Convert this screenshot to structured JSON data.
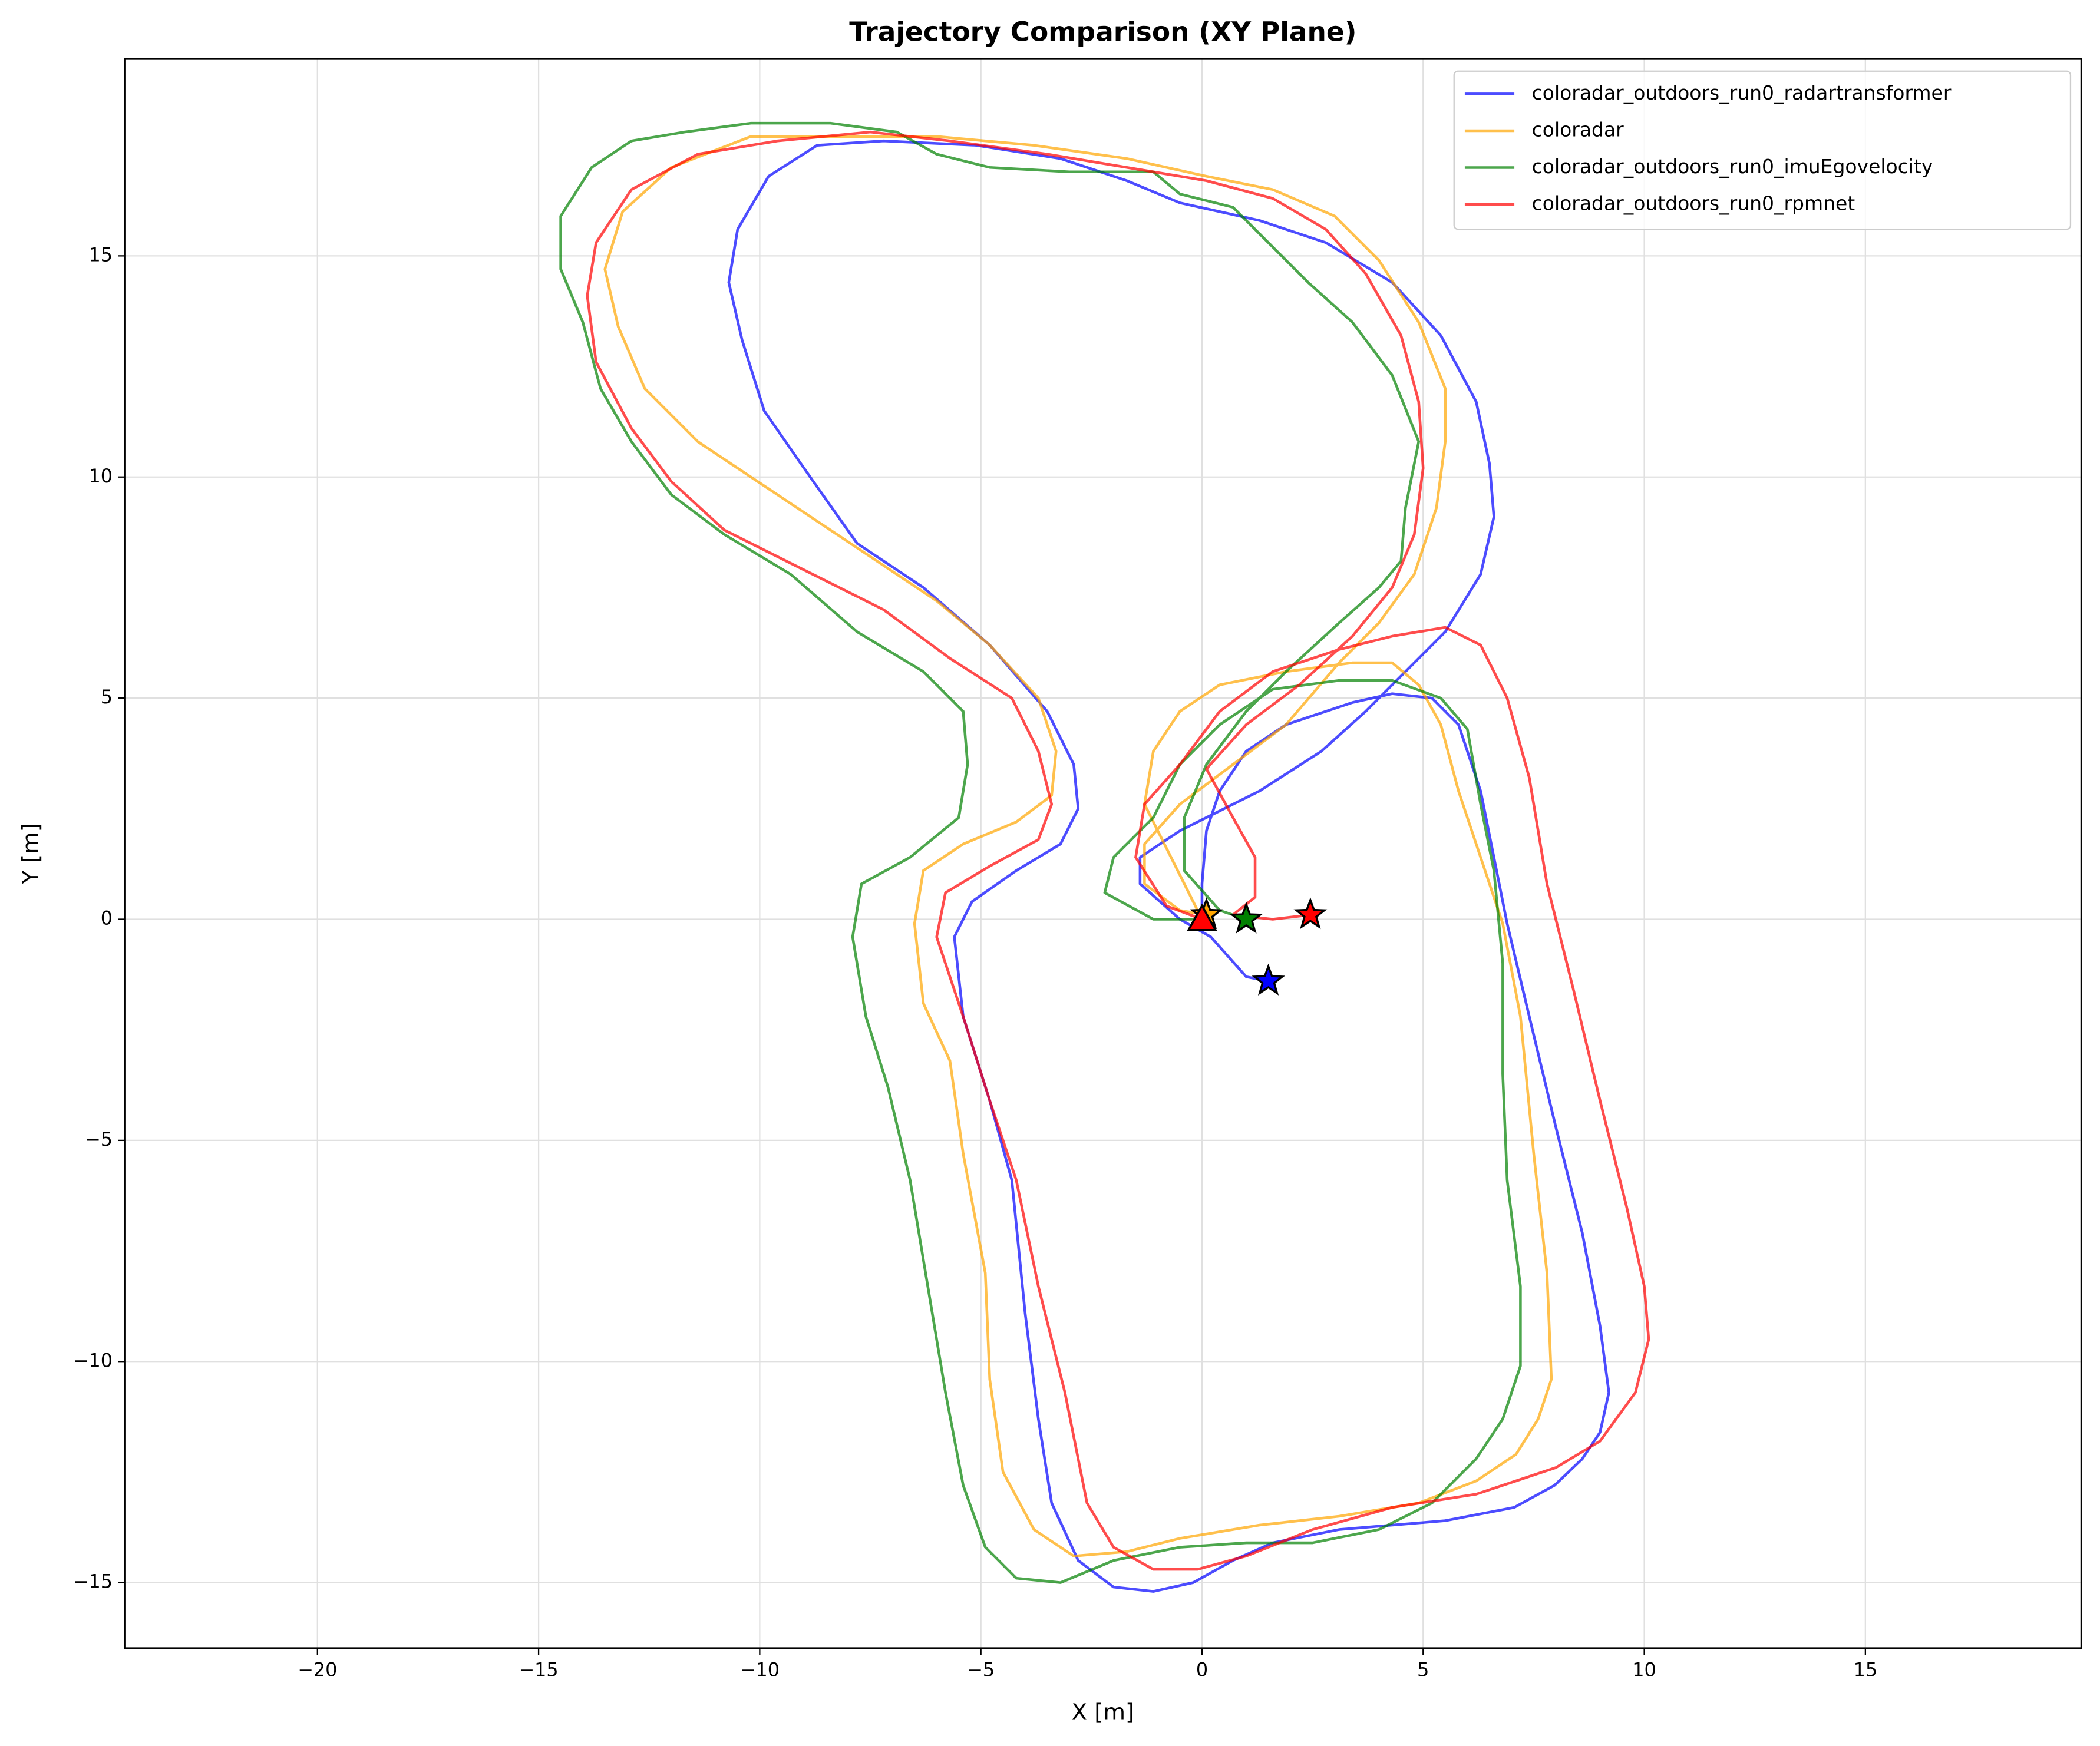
{
  "chart_data": {
    "type": "line",
    "title": "Trajectory Comparison (XY Plane)",
    "x_label": "X [m]",
    "y_label": "Y [m]",
    "xlim": [
      -24.36,
      19.88
    ],
    "ylim": [
      -16.48,
      19.45
    ],
    "xticks": [
      {
        "value": -20,
        "label": "−20"
      },
      {
        "value": -15,
        "label": "−15"
      },
      {
        "value": -10,
        "label": "−10"
      },
      {
        "value": -5,
        "label": "−5"
      },
      0,
      5,
      10,
      15
    ],
    "yticks": [
      {
        "value": -15,
        "label": "−15"
      },
      {
        "value": -10,
        "label": "−10"
      },
      {
        "value": -5,
        "label": "−5"
      },
      0,
      5,
      10,
      15
    ],
    "grid": true,
    "legend": "upper right",
    "series": [
      {
        "name": "coloradar_outdoors_run0_radartransformer",
        "color": "#0000ff",
        "x": [
          0,
          0,
          0.1,
          0.4,
          1.0,
          1.9,
          3.4,
          4.3,
          5.2,
          5.8,
          6.3,
          6.6,
          6.9,
          7.4,
          8.0,
          8.6,
          9.0,
          9.2,
          9.0,
          8.6,
          7.97,
          7.06,
          5.5,
          3.1,
          1.6,
          0.7,
          -0.2,
          -1.1,
          -2.0,
          -2.8,
          -3.4,
          -3.7,
          -4.0,
          -4.3,
          -4.8,
          -5.4,
          -5.6,
          -5.2,
          -4.2,
          -3.2,
          -2.8,
          -2.9,
          -3.5,
          -4.8,
          -6.3,
          -7.8,
          -9.0,
          -9.9,
          -10.4,
          -10.7,
          -10.5,
          -9.8,
          -8.7,
          -7.2,
          -5.1,
          -3.2,
          -1.7,
          -0.5,
          1.3,
          2.8,
          4.3,
          5.4,
          6.2,
          6.5,
          6.6,
          6.3,
          5.5,
          4.6,
          3.7,
          2.7,
          1.3,
          -0.5,
          -1.4,
          -1.4,
          -0.5,
          0.2,
          1.0,
          1.5
        ],
        "y": [
          0,
          0.8,
          2.0,
          2.9,
          3.8,
          4.4,
          4.9,
          5.1,
          5.0,
          4.4,
          2.9,
          1.4,
          -0.1,
          -2.2,
          -4.7,
          -7.1,
          -9.2,
          -10.7,
          -11.6,
          -12.2,
          -12.8,
          -13.3,
          -13.6,
          -13.8,
          -14.1,
          -14.5,
          -15.0,
          -15.2,
          -15.1,
          -14.5,
          -13.2,
          -11.3,
          -8.9,
          -5.9,
          -4.1,
          -2.2,
          -0.4,
          0.4,
          1.1,
          1.7,
          2.5,
          3.5,
          4.7,
          6.2,
          7.5,
          8.5,
          10.2,
          11.5,
          13.1,
          14.4,
          15.6,
          16.8,
          17.5,
          17.6,
          17.5,
          17.2,
          16.7,
          16.2,
          15.8,
          15.3,
          14.4,
          13.2,
          11.7,
          10.3,
          9.1,
          7.8,
          6.5,
          5.6,
          4.7,
          3.8,
          2.9,
          2.0,
          1.4,
          0.8,
          0.0,
          -0.4,
          -1.3,
          -1.4
        ]
      },
      {
        "name": "coloradar",
        "color": "#ffa500",
        "x": [
          0,
          -1.3,
          -1.1,
          -0.5,
          0.4,
          1.9,
          3.4,
          4.3,
          4.9,
          5.4,
          5.8,
          6.3,
          6.8,
          7.2,
          7.5,
          7.8,
          7.9,
          7.6,
          7.1,
          6.2,
          4.9,
          3.1,
          1.3,
          -0.5,
          -1.7,
          -2.9,
          -3.8,
          -4.5,
          -4.8,
          -4.9,
          -5.4,
          -5.7,
          -6.3,
          -6.5,
          -6.3,
          -5.4,
          -4.2,
          -3.4,
          -3.3,
          -3.7,
          -4.8,
          -6.0,
          -7.8,
          -9.6,
          -11.4,
          -12.6,
          -13.2,
          -13.5,
          -13.1,
          -12.0,
          -10.2,
          -8.4,
          -6.0,
          -3.8,
          -1.7,
          0.1,
          1.6,
          3.0,
          4.0,
          4.9,
          5.5,
          5.5,
          5.3,
          4.8,
          4.0,
          3.1,
          1.9,
          0.7,
          -0.5,
          -1.3,
          -1.3,
          -0.5,
          0.1
        ],
        "y": [
          0,
          2.6,
          3.8,
          4.7,
          5.3,
          5.6,
          5.8,
          5.8,
          5.3,
          4.4,
          2.9,
          1.4,
          -0.1,
          -2.2,
          -5.3,
          -8.0,
          -10.4,
          -11.3,
          -12.1,
          -12.7,
          -13.2,
          -13.5,
          -13.7,
          -14.0,
          -14.3,
          -14.4,
          -13.8,
          -12.5,
          -10.4,
          -8.0,
          -5.3,
          -3.2,
          -1.9,
          -0.1,
          1.1,
          1.7,
          2.2,
          2.8,
          3.8,
          5.0,
          6.2,
          7.2,
          8.4,
          9.6,
          10.8,
          12.0,
          13.4,
          14.7,
          16.0,
          17.0,
          17.7,
          17.7,
          17.7,
          17.5,
          17.2,
          16.8,
          16.5,
          15.9,
          14.9,
          13.5,
          12.0,
          10.8,
          9.3,
          7.8,
          6.7,
          5.8,
          4.4,
          3.5,
          2.6,
          1.7,
          0.8,
          0.2,
          0.1
        ]
      },
      {
        "name": "coloradar_outdoors_run0_imuEgovelocity",
        "color": "#008000",
        "x": [
          0,
          -1.1,
          -2.2,
          -2.0,
          -1.1,
          -0.5,
          0.4,
          1.6,
          3.1,
          4.3,
          5.4,
          6.0,
          6.3,
          6.6,
          6.8,
          6.8,
          6.9,
          7.2,
          7.2,
          6.8,
          6.2,
          5.2,
          4.0,
          2.5,
          1.0,
          -0.5,
          -2.0,
          -3.2,
          -4.2,
          -4.9,
          -5.4,
          -5.8,
          -6.2,
          -6.6,
          -7.1,
          -7.6,
          -7.9,
          -7.7,
          -6.6,
          -5.5,
          -5.3,
          -5.4,
          -6.3,
          -7.8,
          -9.3,
          -10.8,
          -12.0,
          -12.9,
          -13.6,
          -14.0,
          -14.5,
          -14.5,
          -13.8,
          -12.9,
          -11.7,
          -10.2,
          -8.4,
          -6.9,
          -6.0,
          -4.8,
          -3.0,
          -1.1,
          -0.5,
          0.7,
          1.5,
          2.4,
          3.4,
          4.3,
          4.9,
          4.6,
          4.5,
          4.0,
          3.1,
          1.9,
          1.0,
          0.1,
          -0.4,
          -0.4,
          0.4,
          1.0
        ],
        "y": [
          0,
          0.0,
          0.6,
          1.4,
          2.3,
          3.5,
          4.4,
          5.2,
          5.4,
          5.4,
          5.0,
          4.3,
          2.6,
          1.1,
          -1.0,
          -3.5,
          -5.9,
          -8.3,
          -10.1,
          -11.3,
          -12.2,
          -13.2,
          -13.8,
          -14.1,
          -14.1,
          -14.2,
          -14.5,
          -15.0,
          -14.9,
          -14.2,
          -12.8,
          -10.7,
          -8.3,
          -5.9,
          -3.8,
          -2.2,
          -0.4,
          0.8,
          1.4,
          2.3,
          3.5,
          4.7,
          5.6,
          6.5,
          7.8,
          8.7,
          9.6,
          10.8,
          12.0,
          13.5,
          14.7,
          15.9,
          17.0,
          17.6,
          17.8,
          18.0,
          18.0,
          17.8,
          17.3,
          17.0,
          16.9,
          16.9,
          16.4,
          16.1,
          15.3,
          14.4,
          13.5,
          12.3,
          10.8,
          9.3,
          8.1,
          7.5,
          6.7,
          5.6,
          4.7,
          3.5,
          2.3,
          1.1,
          0.2,
          0.0
        ]
      },
      {
        "name": "coloradar_outdoors_run0_rpmnet",
        "color": "#ff0000",
        "x": [
          0,
          -0.8,
          -1.5,
          -1.3,
          -0.5,
          0.4,
          1.6,
          3.1,
          4.3,
          5.5,
          6.3,
          6.9,
          7.4,
          7.8,
          8.4,
          9.0,
          9.6,
          10.0,
          10.1,
          9.8,
          9.0,
          8.0,
          6.2,
          4.3,
          2.5,
          1.0,
          -0.1,
          -1.1,
          -2.0,
          -2.6,
          -3.1,
          -3.7,
          -4.2,
          -4.8,
          -5.4,
          -6.0,
          -5.8,
          -4.8,
          -3.7,
          -3.4,
          -3.7,
          -4.3,
          -5.7,
          -7.2,
          -9.0,
          -10.8,
          -12.0,
          -12.9,
          -13.7,
          -13.9,
          -13.7,
          -12.9,
          -11.4,
          -9.6,
          -7.5,
          -5.7,
          -3.5,
          -1.7,
          0.1,
          1.6,
          2.8,
          3.7,
          4.5,
          4.9,
          5.0,
          4.8,
          4.3,
          3.4,
          2.2,
          1.0,
          0.1,
          0.7,
          1.2,
          1.2,
          0.7,
          1.6,
          2.45
        ],
        "y": [
          0,
          0.3,
          1.4,
          2.6,
          3.5,
          4.7,
          5.6,
          6.1,
          6.4,
          6.6,
          6.2,
          5.0,
          3.2,
          0.8,
          -1.6,
          -4.1,
          -6.5,
          -8.3,
          -9.5,
          -10.7,
          -11.8,
          -12.4,
          -13.0,
          -13.3,
          -13.8,
          -14.4,
          -14.7,
          -14.7,
          -14.2,
          -13.2,
          -10.7,
          -8.3,
          -5.9,
          -4.1,
          -2.2,
          -0.4,
          0.6,
          1.2,
          1.8,
          2.6,
          3.8,
          5.0,
          5.9,
          7.0,
          7.9,
          8.8,
          9.9,
          11.1,
          12.6,
          14.1,
          15.3,
          16.5,
          17.3,
          17.6,
          17.8,
          17.6,
          17.3,
          17.0,
          16.7,
          16.3,
          15.6,
          14.6,
          13.2,
          11.7,
          10.2,
          8.7,
          7.5,
          6.4,
          5.3,
          4.4,
          3.4,
          2.3,
          1.4,
          0.5,
          0.1,
          0.0,
          0.1
        ]
      }
    ]
  }
}
